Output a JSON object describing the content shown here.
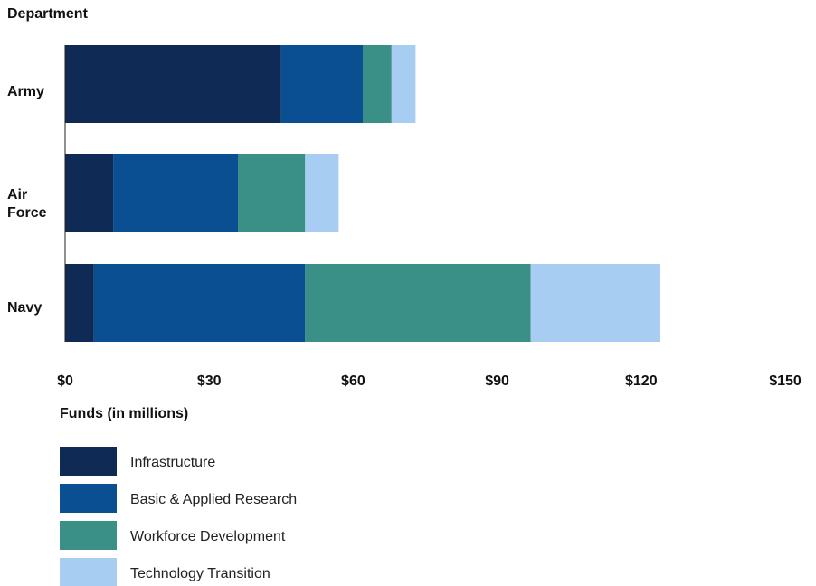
{
  "chart_data": {
    "type": "bar",
    "orientation": "horizontal",
    "stacked": true,
    "title": "",
    "ylabel": "Department",
    "xlabel": "Funds (in millions)",
    "categories": [
      "Army",
      "Air Force",
      "Navy"
    ],
    "series": [
      {
        "name": "Infrastructure",
        "color": "#0f2a55",
        "values": [
          45,
          10,
          6
        ]
      },
      {
        "name": "Basic & Applied Research",
        "color": "#0a4f91",
        "values": [
          17,
          26,
          44
        ]
      },
      {
        "name": "Workforce Development",
        "color": "#3a8f86",
        "values": [
          6,
          14,
          47
        ]
      },
      {
        "name": "Technology Transition",
        "color": "#a7cdf2",
        "values": [
          5,
          7,
          27
        ]
      }
    ],
    "xlim": [
      0,
      150
    ],
    "xticks": [
      0,
      30,
      60,
      90,
      120,
      150
    ],
    "xtick_labels": [
      "$0",
      "$30",
      "$60",
      "$90",
      "$120",
      "$150"
    ],
    "grid": false,
    "legend_position": "bottom-left"
  }
}
